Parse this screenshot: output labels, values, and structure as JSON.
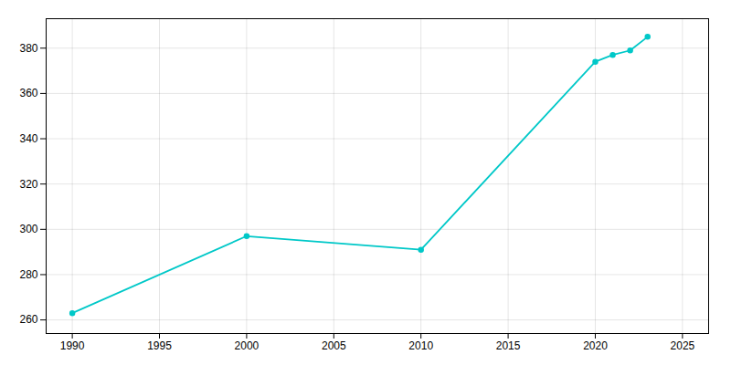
{
  "chart_data": {
    "type": "line",
    "x": [
      1990,
      2000,
      2010,
      2020,
      2021,
      2022,
      2023
    ],
    "values": [
      263,
      297,
      291,
      374,
      377,
      379,
      385
    ],
    "color": "#00c8c8",
    "marker": "circle",
    "xlim": [
      1988.5,
      2026.5
    ],
    "ylim": [
      254,
      393
    ],
    "xticks": [
      1990,
      1995,
      2000,
      2005,
      2010,
      2015,
      2020,
      2025
    ],
    "yticks": [
      260,
      280,
      300,
      320,
      340,
      360,
      380
    ],
    "grid": true
  }
}
